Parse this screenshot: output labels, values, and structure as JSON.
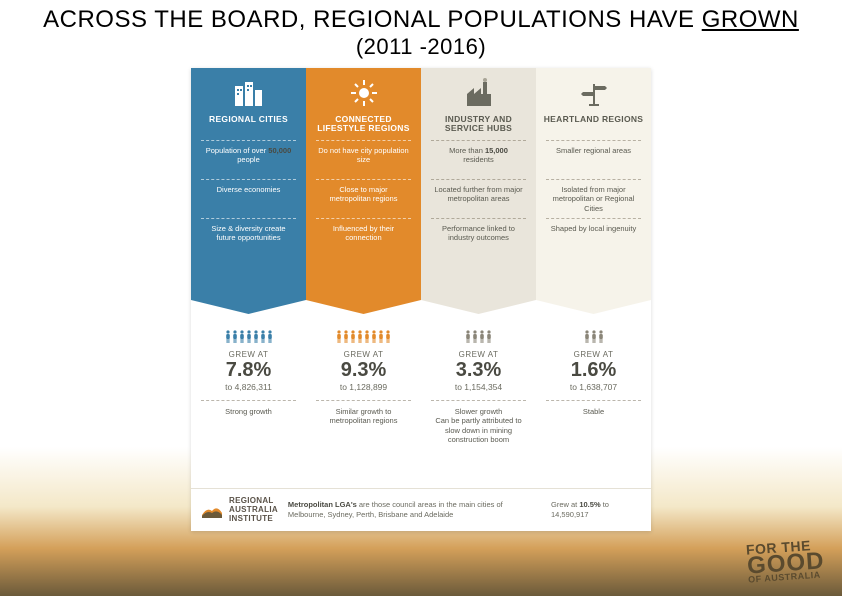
{
  "title_main": "ACROSS THE BOARD, REGIONAL POPULATIONS HAVE ",
  "title_underlined": "GROWN",
  "title_sub": "(2011 -2016)",
  "columns": [
    {
      "header": "REGIONAL CITIES",
      "top_color": "#3a7fa8",
      "icon": "buildings",
      "rows": [
        "Population of over <b>50,000</b> people",
        "Diverse economies",
        "Size & diversity create future opportunities"
      ],
      "people_count": 7,
      "people_color": "#3a7fa8",
      "grew_label": "GREW AT",
      "percent": "7.8%",
      "to_value": "to 4,826,311",
      "growth_note": "Strong growth"
    },
    {
      "header": "CONNECTED LIFESTYLE REGIONS",
      "top_color": "#e28a2b",
      "icon": "sun",
      "rows": [
        "Do not have city population size",
        "Close to major metropolitan regions",
        "Influenced by their connection"
      ],
      "people_count": 8,
      "people_color": "#e28a2b",
      "grew_label": "GREW AT",
      "percent": "9.3%",
      "to_value": "to 1,128,899",
      "growth_note": "Similar growth to metropolitan regions"
    },
    {
      "header": "INDUSTRY AND SERVICE HUBS",
      "top_color": "#e9e5db",
      "icon": "factory",
      "rows": [
        "More than <b>15,000</b> residents",
        "Located further from major metropolitan areas",
        "Performance linked to industry outcomes"
      ],
      "people_count": 4,
      "people_color": "#8a8578",
      "grew_label": "GREW AT",
      "percent": "3.3%",
      "to_value": "to 1,154,354",
      "growth_note": "Slower growth<br>Can be partly attributed to slow down in mining construction boom"
    },
    {
      "header": "HEARTLAND REGIONS",
      "top_color": "#f6f3ea",
      "icon": "signpost",
      "rows": [
        "Smaller regional areas",
        "Isolated from major metropolitan or Regional Cities",
        "Shaped by local ingenuity"
      ],
      "people_count": 3,
      "people_color": "#8a8578",
      "grew_label": "GREW AT",
      "percent": "1.6%",
      "to_value": "to 1,638,707",
      "growth_note": "Stable"
    }
  ],
  "footer": {
    "logo_text": "REGIONAL AUSTRALIA INSTITUTE",
    "mid_html": "<b>Metropolitan LGA's</b> are those council areas in the main cities of Melbourne, Sydney, Perth, Brisbane and Adelaide",
    "right_html": "Grew at <b>10.5%</b> to 14,590,917"
  },
  "tagline": {
    "l1": "FOR THE",
    "l2": "GOOD",
    "l3": "OF AUSTRALIA"
  }
}
